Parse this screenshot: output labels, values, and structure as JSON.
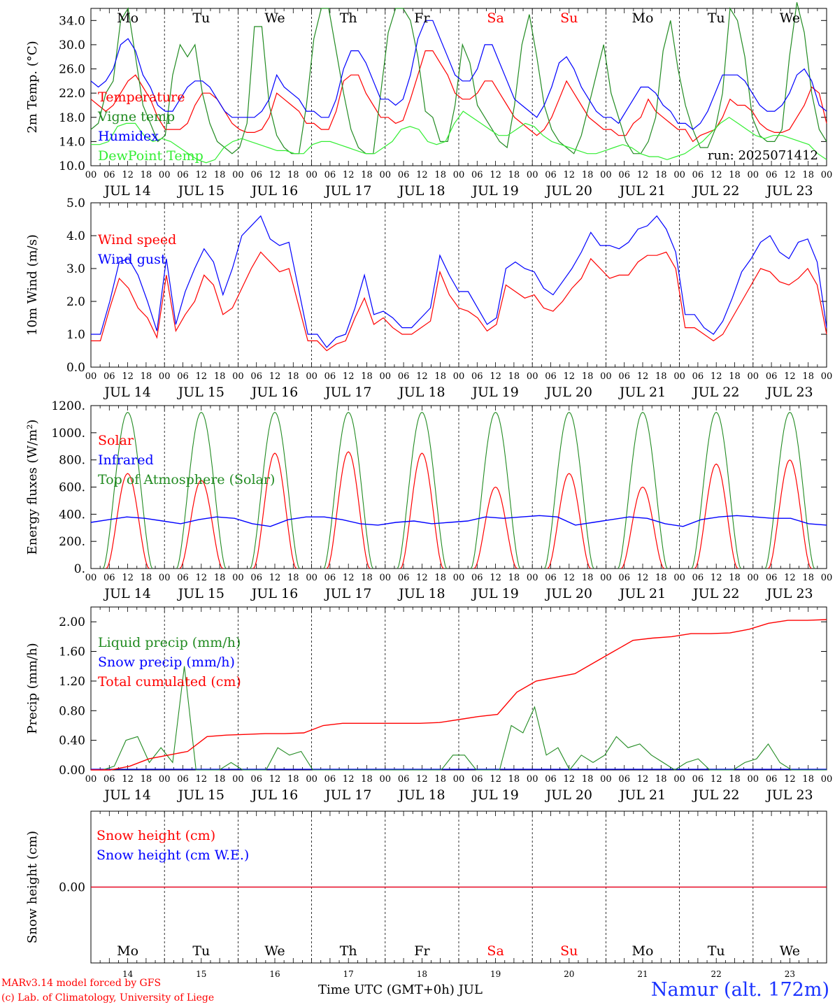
{
  "chart_data": [
    {
      "type": "line",
      "ylabel": "2m Temp. (°C)",
      "ylim": [
        10,
        36
      ],
      "yticks": [
        "10.0",
        "14.0",
        "18.0",
        "22.0",
        "26.0",
        "30.0",
        "34.0"
      ],
      "run": "run: 2025071412",
      "weekday_labels": [
        "Mo",
        "Tu",
        "We",
        "Th",
        "Fr",
        "Sa",
        "Su",
        "Mo",
        "Tu",
        "We"
      ],
      "weekday_colors": [
        "#000000",
        "#000000",
        "#000000",
        "#000000",
        "#000000",
        "#ff0000",
        "#ff0000",
        "#000000",
        "#000000",
        "#000000"
      ],
      "x_hours_step": 3,
      "series": [
        {
          "name": "Temperature",
          "color": "#ff0000",
          "values": [
            21,
            20,
            19,
            20,
            22,
            24,
            25,
            23,
            21,
            18,
            16,
            16,
            16,
            17,
            20,
            22,
            22,
            21,
            19,
            17,
            16,
            15.5,
            15.5,
            16,
            18,
            22,
            21,
            20,
            19,
            17,
            17,
            16,
            16,
            19,
            24,
            25,
            25,
            22,
            20,
            18,
            18,
            17,
            17.5,
            21,
            25,
            29,
            29,
            27,
            25,
            22,
            21,
            21,
            22,
            24,
            24,
            22,
            20,
            18,
            17,
            16,
            15,
            16,
            18,
            21,
            24,
            22,
            20,
            18,
            17,
            16,
            16,
            15,
            15,
            17,
            18,
            21,
            19,
            18,
            17,
            16,
            16,
            14,
            15,
            15.5,
            16,
            18,
            21,
            20,
            20,
            19,
            17,
            16,
            15.5,
            15.5,
            16,
            18,
            20,
            23,
            22,
            17
          ]
        },
        {
          "name": "Vigne temp",
          "color": "#228b22",
          "values": [
            16,
            17,
            22,
            24,
            34,
            36,
            28,
            20,
            17,
            14,
            15,
            25,
            30,
            28,
            30,
            22,
            17,
            14,
            13,
            12,
            13,
            17,
            33,
            33,
            20,
            15,
            13,
            12,
            12,
            20,
            31,
            36,
            36,
            29,
            22,
            16,
            13,
            12,
            12,
            22,
            32,
            36,
            36,
            34,
            28,
            19,
            18,
            14,
            14,
            20,
            30,
            27,
            20,
            18,
            16,
            14,
            13,
            20,
            30,
            35,
            28,
            20,
            16,
            14,
            13,
            12,
            15,
            20,
            25,
            30,
            22,
            18,
            14,
            12,
            12,
            14,
            18,
            29,
            34,
            26,
            20,
            16,
            13,
            13,
            16,
            22,
            36,
            34,
            28,
            18,
            15,
            14,
            14,
            16,
            28,
            37,
            32,
            22,
            16,
            14
          ]
        },
        {
          "name": "Humidex",
          "color": "#0000ff",
          "values": [
            24,
            23,
            24,
            26,
            30,
            31,
            29,
            25,
            23,
            20,
            19,
            19,
            21,
            23,
            24,
            24,
            23,
            21,
            19,
            18,
            18,
            18,
            18,
            19,
            21,
            25,
            23,
            22,
            21,
            19,
            19,
            18,
            18,
            21,
            26,
            29,
            29,
            27,
            24,
            21,
            21,
            20,
            21,
            25,
            31,
            34,
            34,
            31,
            28,
            25,
            24,
            24,
            26,
            30,
            30,
            27,
            24,
            21,
            20,
            19,
            18,
            20,
            23,
            27,
            28,
            26,
            23,
            21,
            19,
            18,
            18,
            17,
            19,
            21,
            23,
            23,
            22,
            20,
            19,
            17,
            17,
            16,
            17,
            19,
            22,
            25,
            25,
            25,
            24,
            22,
            20,
            19,
            19,
            20,
            22,
            25,
            26,
            24,
            20,
            19
          ]
        },
        {
          "name": "DewPoint Temp",
          "color": "#33ee33",
          "values": [
            13.5,
            13.5,
            14,
            16.5,
            17,
            17,
            15,
            14,
            14.5,
            14,
            13,
            12,
            11,
            10.5,
            11,
            13,
            14,
            14.5,
            14,
            13.5,
            13,
            12.5,
            12.5,
            12,
            12,
            13.5,
            14,
            14,
            13.5,
            13,
            12.5,
            12,
            12,
            13,
            14,
            16,
            16.5,
            16,
            14,
            13.5,
            14,
            17,
            19,
            18,
            17,
            16,
            15,
            15,
            16,
            17,
            16.5,
            15,
            14,
            13.5,
            13,
            12.5,
            12,
            12,
            12.5,
            13,
            13.5,
            13,
            12,
            11.5,
            11.5,
            11,
            11.5,
            12,
            13,
            14,
            15.5,
            17,
            18,
            17,
            16,
            15,
            14.5,
            15,
            15,
            14.5,
            14,
            13.5,
            12,
            11
          ]
        }
      ]
    },
    {
      "type": "line",
      "ylabel": "10m Wind (m/s)",
      "ylim": [
        0,
        5
      ],
      "yticks": [
        "0.0",
        "1.0",
        "2.0",
        "3.0",
        "4.0",
        "5.0"
      ],
      "series": [
        {
          "name": "Wind speed",
          "color": "#ff0000",
          "values": [
            0.8,
            0.8,
            1.8,
            2.7,
            2.4,
            1.8,
            1.5,
            0.9,
            2.8,
            1.1,
            1.6,
            2.0,
            2.8,
            2.5,
            1.6,
            1.8,
            2.4,
            3.0,
            3.5,
            3.2,
            2.9,
            3.0,
            1.9,
            0.8,
            0.8,
            0.5,
            0.7,
            0.8,
            1.5,
            2.1,
            1.3,
            1.5,
            1.2,
            1.0,
            1.0,
            1.2,
            1.4,
            2.9,
            2.2,
            1.8,
            1.7,
            1.5,
            1.1,
            1.3,
            2.5,
            2.3,
            2.1,
            2.2,
            1.8,
            1.7,
            2.0,
            2.4,
            2.7,
            3.3,
            3.0,
            2.7,
            2.8,
            2.8,
            3.2,
            3.4,
            3.4,
            3.5,
            3.0,
            1.2,
            1.2,
            1.0,
            0.8,
            1.0,
            1.5,
            2.0,
            2.5,
            3.0,
            2.9,
            2.6,
            2.5,
            2.7,
            3.0,
            2.5,
            1.0
          ]
        },
        {
          "name": "Wind gust",
          "color": "#0000ff",
          "values": [
            1.0,
            1.0,
            2.0,
            3.2,
            3.3,
            2.8,
            2.0,
            1.1,
            3.3,
            1.3,
            2.3,
            3.0,
            3.6,
            3.2,
            2.2,
            3.0,
            4.0,
            4.3,
            4.6,
            3.9,
            3.7,
            3.8,
            2.4,
            1.0,
            1.0,
            0.6,
            0.9,
            1.0,
            1.8,
            2.8,
            1.6,
            1.7,
            1.5,
            1.2,
            1.2,
            1.5,
            1.8,
            3.4,
            2.8,
            2.3,
            2.3,
            1.8,
            1.3,
            1.5,
            3.0,
            3.2,
            3.0,
            2.9,
            2.4,
            2.2,
            2.6,
            3.0,
            3.5,
            4.1,
            3.7,
            3.7,
            3.6,
            3.8,
            4.2,
            4.3,
            4.6,
            4.2,
            3.5,
            1.6,
            1.6,
            1.2,
            1.0,
            1.4,
            2.1,
            2.9,
            3.3,
            3.8,
            4.0,
            3.5,
            3.3,
            3.8,
            3.9,
            3.2,
            1.2
          ]
        }
      ]
    },
    {
      "type": "line",
      "ylabel": "Energy fluxes (W/m²)",
      "ylim": [
        0,
        1200
      ],
      "yticks": [
        "0.",
        "200.",
        "400.",
        "600.",
        "800.",
        "1000.",
        "1200."
      ],
      "series": [
        {
          "name": "Solar",
          "color": "#ff0000",
          "values_by_day": [
            700,
            650,
            850,
            860,
            850,
            600,
            700,
            600,
            770,
            800
          ]
        },
        {
          "name": "Infrared",
          "color": "#0000ff",
          "values": [
            340,
            360,
            380,
            370,
            350,
            330,
            360,
            380,
            370,
            330,
            310,
            360,
            380,
            380,
            360,
            330,
            320,
            340,
            350,
            330,
            340,
            350,
            380,
            370,
            380,
            390,
            380,
            320,
            340,
            360,
            380,
            370,
            330,
            310,
            360,
            380,
            390,
            380,
            370,
            370,
            330,
            320
          ]
        },
        {
          "name": "Top of Atmosphere (Solar)",
          "color": "#228b22",
          "daily_peak": 1150
        }
      ]
    },
    {
      "type": "line",
      "ylabel": "Precip (mm/h)",
      "ylim": [
        0,
        2.2
      ],
      "yticks": [
        "0.00",
        "0.40",
        "0.80",
        "1.20",
        "1.60",
        "2.00"
      ],
      "series": [
        {
          "name": "Liquid precip (mm/h)",
          "color": "#228b22",
          "values": [
            0,
            0,
            0.05,
            0.4,
            0.45,
            0.1,
            0.3,
            0.1,
            1.4,
            0,
            0,
            0,
            0.1,
            0,
            0,
            0,
            0.3,
            0.2,
            0.25,
            0,
            0,
            0,
            0,
            0,
            0,
            0,
            0,
            0,
            0,
            0,
            0,
            0.2,
            0.2,
            0,
            0,
            0,
            0.6,
            0.5,
            0.85,
            0.2,
            0.3,
            0,
            0.2,
            0.1,
            0.2,
            0.45,
            0.3,
            0.35,
            0.2,
            0.1,
            0,
            0.1,
            0.15,
            0,
            0,
            0,
            0.1,
            0.15,
            0.35,
            0.1,
            0,
            0,
            0,
            0
          ]
        },
        {
          "name": "Snow precip (mm/h)",
          "color": "#0000ff",
          "values": [
            0
          ]
        },
        {
          "name": "Total cumulated (cm)",
          "color": "#ff0000",
          "values": [
            0,
            0,
            0.05,
            0.15,
            0.2,
            0.25,
            0.45,
            0.47,
            0.48,
            0.49,
            0.49,
            0.5,
            0.6,
            0.63,
            0.63,
            0.63,
            0.63,
            0.63,
            0.64,
            0.68,
            0.72,
            0.75,
            1.05,
            1.2,
            1.25,
            1.3,
            1.45,
            1.6,
            1.75,
            1.78,
            1.8,
            1.84,
            1.84,
            1.85,
            1.9,
            1.98,
            2.02,
            2.02,
            2.03
          ]
        }
      ]
    },
    {
      "type": "line",
      "ylabel": "Snow height (cm)",
      "ylim": [
        -1,
        1
      ],
      "yticks": [
        "0.00"
      ],
      "series": [
        {
          "name": "Snow height (cm)",
          "color": "#ff0000",
          "values": [
            0,
            0
          ]
        },
        {
          "name": "Snow height (cm W.E.)",
          "color": "#0000ff",
          "values": [
            0,
            0
          ]
        }
      ],
      "day_numbers": [
        "14",
        "15",
        "16",
        "17",
        "18",
        "19",
        "20",
        "21",
        "22",
        "23"
      ]
    }
  ],
  "x_axis": {
    "hour_ticks": [
      "00",
      "06",
      "12",
      "18"
    ],
    "days": [
      "JUL 14",
      "JUL 15",
      "JUL 16",
      "JUL 17",
      "JUL 18",
      "JUL 19",
      "JUL 20",
      "JUL 21",
      "JUL 22",
      "JUL 23"
    ],
    "final_tick": "00"
  },
  "footer": {
    "credit_line1": "MARv3.14 model forced by GFS",
    "credit_line2": "(c) Lab. of Climatology, University of Liege",
    "time_label": "Time UTC (GMT+0h) JUL",
    "station": "Namur (alt. 172m)"
  }
}
